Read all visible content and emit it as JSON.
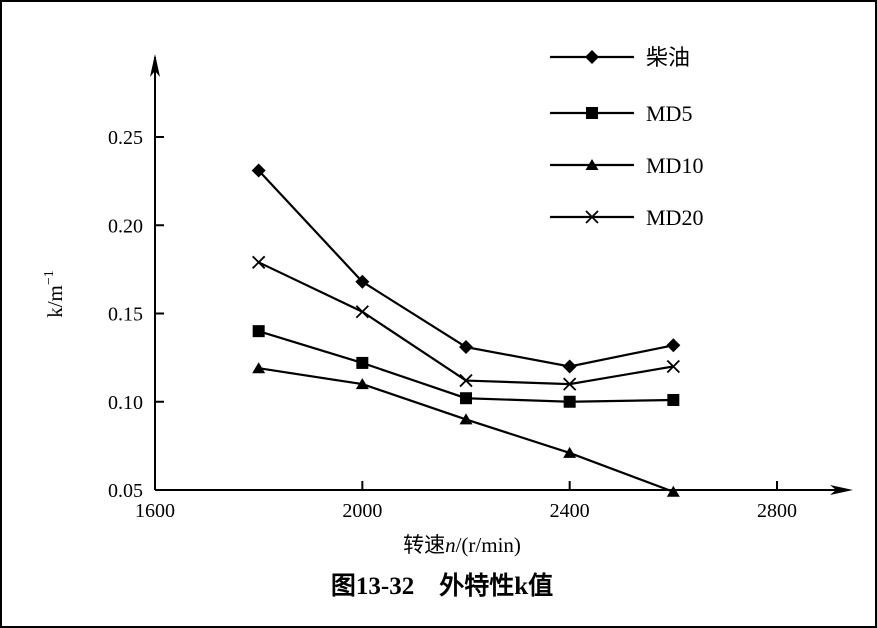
{
  "chart_data": {
    "type": "line",
    "caption": "图13-32　外特性k值",
    "xlabel_prefix": "转速",
    "xlabel_var": "n",
    "xlabel_unit": "/(r/min)",
    "ylabel": "k/m",
    "ylabel_sup": "−1",
    "xlim": [
      1600,
      2850
    ],
    "ylim": [
      0.05,
      0.28
    ],
    "x_ticks": [
      1600,
      2000,
      2400,
      2800
    ],
    "x_tick_labels": [
      "1600",
      "2000",
      "2400",
      "2800"
    ],
    "y_ticks": [
      0.05,
      0.1,
      0.15,
      0.2,
      0.25
    ],
    "y_tick_labels": [
      "0.05",
      "0.10",
      "0.15",
      "0.20",
      "0.25"
    ],
    "x": [
      1800,
      2000,
      2200,
      2400,
      2600
    ],
    "grid": false,
    "legend_position": "top-right",
    "series": [
      {
        "name": "柴油",
        "marker": "diamond",
        "values": [
          0.231,
          0.168,
          0.131,
          0.12,
          0.132
        ]
      },
      {
        "name": "MD5",
        "marker": "square",
        "values": [
          0.14,
          0.122,
          0.102,
          0.1,
          0.101
        ]
      },
      {
        "name": "MD10",
        "marker": "triangle",
        "values": [
          0.119,
          0.11,
          0.09,
          0.071,
          0.049
        ]
      },
      {
        "name": "MD20",
        "marker": "x",
        "values": [
          0.179,
          0.151,
          0.112,
          0.11,
          0.12
        ]
      }
    ]
  }
}
